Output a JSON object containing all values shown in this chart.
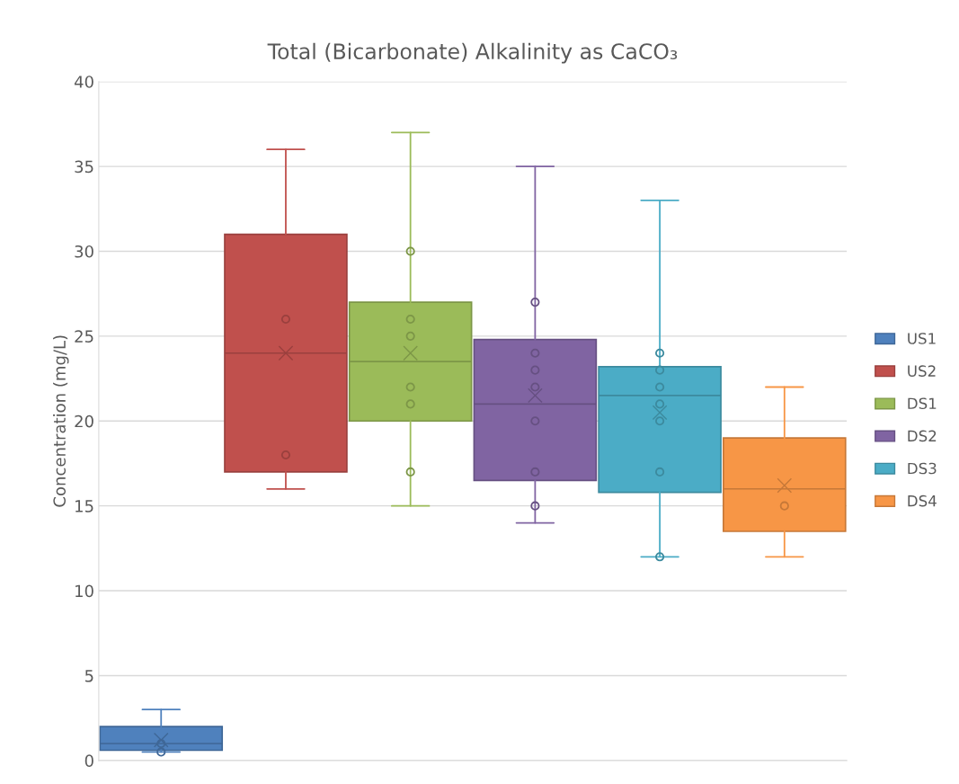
{
  "chart_data": {
    "type": "box",
    "title": "Total (Bicarbonate) Alkalinity as CaCO₃",
    "ylabel": "Concentration (mg/L)",
    "categories": [
      null
    ],
    "series": [
      {
        "name": "US1",
        "color": "#4f81bd",
        "boxes": [
          {
            "low": 0.5,
            "q1": 0.6,
            "median": 1,
            "q3": 2,
            "high": 3,
            "mean": 1.2,
            "outliers": [
              0.5,
              1
            ]
          }
        ]
      },
      {
        "name": "US2",
        "color": "#c0504d",
        "boxes": [
          {
            "low": 16,
            "q1": 17,
            "median": 24,
            "q3": 31,
            "high": 36,
            "mean": 24,
            "outliers": [
              26,
              18
            ]
          }
        ]
      },
      {
        "name": "DS1",
        "color": "#9bbb59",
        "boxes": [
          {
            "low": 15,
            "q1": 20,
            "median": 23.5,
            "q3": 27,
            "high": 37,
            "mean": 24,
            "outliers": [
              30,
              26,
              25,
              22,
              21,
              17
            ]
          }
        ]
      },
      {
        "name": "DS2",
        "color": "#8064a2",
        "boxes": [
          {
            "low": 14,
            "q1": 16.5,
            "median": 21,
            "q3": 24.8,
            "high": 35,
            "mean": 21.5,
            "outliers": [
              27,
              24,
              23,
              22,
              20,
              17,
              15
            ]
          }
        ]
      },
      {
        "name": "DS3",
        "color": "#4bacc6",
        "boxes": [
          {
            "low": 12,
            "q1": 15.8,
            "median": 21.5,
            "q3": 23.2,
            "high": 33,
            "mean": 20.5,
            "outliers": [
              24,
              23,
              22,
              21,
              20,
              17,
              12
            ]
          }
        ]
      },
      {
        "name": "DS4",
        "color": "#f79646",
        "boxes": [
          {
            "low": 12,
            "q1": 13.5,
            "median": 16,
            "q3": 19,
            "high": 22,
            "mean": 16.2,
            "outliers": [
              15
            ]
          }
        ]
      }
    ],
    "ylim": [
      0,
      40
    ],
    "yticks": [
      0,
      5,
      10,
      15,
      20,
      25,
      30,
      35,
      40
    ],
    "grid": "y",
    "legend": "right",
    "tick_labels": "y"
  }
}
